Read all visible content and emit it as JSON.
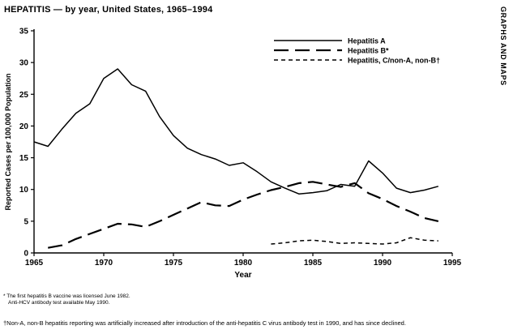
{
  "page": {
    "title": "HEPATITIS — by year, United States, 1965–1994",
    "side_label": "GRAPHS AND MAPS"
  },
  "chart_data": {
    "type": "line",
    "title": "HEPATITIS — by year, United States, 1965–1994",
    "xlabel": "Year",
    "ylabel": "Reported Cases per 100,000 Population",
    "xlim": [
      1965,
      1995
    ],
    "ylim": [
      0,
      35
    ],
    "x_ticks": [
      1965,
      1970,
      1975,
      1980,
      1985,
      1990,
      1995
    ],
    "y_ticks": [
      0,
      5,
      10,
      15,
      20,
      25,
      30,
      35
    ],
    "grid": false,
    "legend_position": "top-right",
    "series": [
      {
        "name": "Hepatitis A",
        "line_style": "solid",
        "x": [
          1965,
          1966,
          1967,
          1968,
          1969,
          1970,
          1971,
          1972,
          1973,
          1974,
          1975,
          1976,
          1977,
          1978,
          1979,
          1980,
          1981,
          1982,
          1983,
          1984,
          1985,
          1986,
          1987,
          1988,
          1989,
          1990,
          1991,
          1992,
          1993,
          1994
        ],
        "values": [
          17.5,
          16.8,
          19.5,
          22.0,
          23.5,
          27.5,
          29.0,
          26.5,
          25.5,
          21.5,
          18.5,
          16.5,
          15.5,
          14.8,
          13.8,
          14.2,
          12.8,
          11.2,
          10.2,
          9.3,
          9.5,
          9.8,
          10.8,
          10.5,
          14.5,
          12.6,
          10.2,
          9.5,
          9.9,
          10.5
        ]
      },
      {
        "name": "Hepatitis B*",
        "line_style": "long-dash",
        "x": [
          1966,
          1967,
          1968,
          1969,
          1970,
          1971,
          1972,
          1973,
          1974,
          1975,
          1976,
          1977,
          1978,
          1979,
          1980,
          1981,
          1982,
          1983,
          1984,
          1985,
          1986,
          1987,
          1988,
          1989,
          1990,
          1991,
          1992,
          1993,
          1994
        ],
        "values": [
          0.8,
          1.2,
          2.2,
          3.0,
          3.8,
          4.6,
          4.5,
          4.1,
          5.0,
          6.0,
          7.0,
          8.0,
          7.5,
          7.4,
          8.4,
          9.2,
          9.9,
          10.4,
          11.0,
          11.2,
          10.8,
          10.4,
          11.0,
          9.4,
          8.5,
          7.4,
          6.5,
          5.5,
          5.0
        ]
      },
      {
        "name": "Hepatitis, C/non-A, non-B†",
        "line_style": "short-dash",
        "x": [
          1982,
          1983,
          1984,
          1985,
          1986,
          1987,
          1988,
          1989,
          1990,
          1991,
          1992,
          1993,
          1994
        ],
        "values": [
          1.4,
          1.6,
          1.9,
          2.0,
          1.8,
          1.5,
          1.6,
          1.5,
          1.4,
          1.6,
          2.4,
          2.0,
          1.9
        ]
      }
    ]
  },
  "footnotes": {
    "star_line1": "* The first hepatitis B vaccine was licensed June 1982.",
    "star_line2": "Anti-HCV antibody test available May 1990.",
    "dagger": "†Non-A, non-B hepatitis reporting was artificially increased after introduction of the anti-hepatitis C virus antibody test in 1990, and has since declined."
  }
}
